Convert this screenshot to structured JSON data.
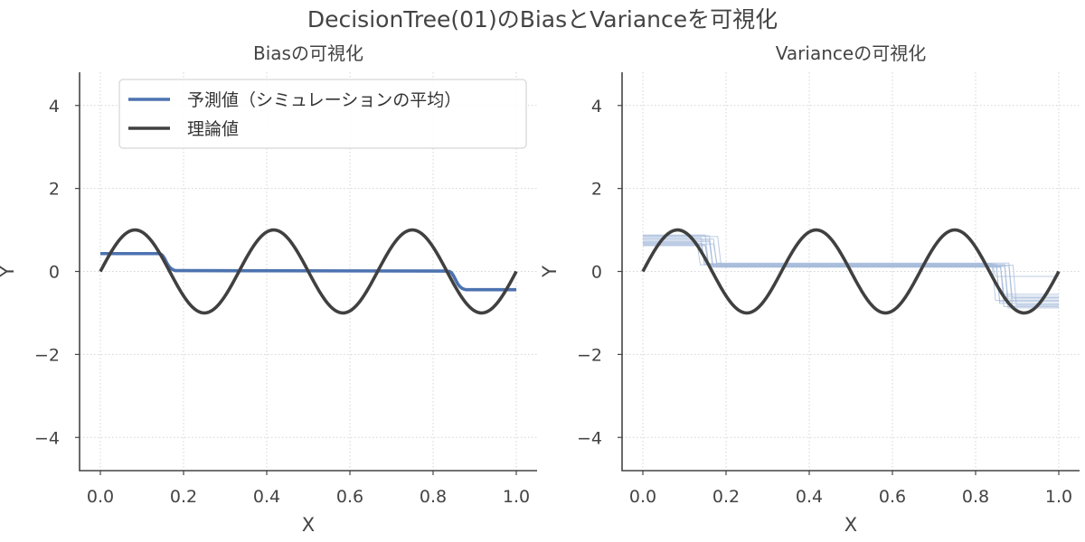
{
  "suptitle": "DecisionTree(01)のBiasとVarianceを可視化",
  "colors": {
    "predicted": "#4c72b0",
    "theory": "#404040",
    "sim": "#a4bad9"
  },
  "chart_data": [
    {
      "type": "line",
      "title": "Biasの可視化",
      "xlabel": "X",
      "ylabel": "Y",
      "xlim": [
        -0.05,
        1.05
      ],
      "ylim": [
        -4.8,
        4.8
      ],
      "xticks": [
        0.0,
        0.2,
        0.4,
        0.6,
        0.8,
        1.0
      ],
      "xtick_labels": [
        "0.0",
        "0.2",
        "0.4",
        "0.6",
        "0.8",
        "1.0"
      ],
      "yticks": [
        -4,
        -2,
        0,
        2,
        4
      ],
      "ytick_labels": [
        "−4",
        "−2",
        "0",
        "2",
        "4"
      ],
      "grid": true,
      "legend": {
        "placement": "upper-left",
        "entries": [
          "予測値（シミュレーションの平均）",
          "理論値"
        ]
      },
      "series": [
        {
          "name": "予測値（シミュレーションの平均）",
          "x": [
            0.0,
            0.14,
            0.145,
            0.15,
            0.155,
            0.16,
            0.165,
            0.17,
            0.175,
            0.18,
            0.19,
            0.83,
            0.84,
            0.845,
            0.85,
            0.855,
            0.86,
            0.865,
            0.87,
            0.875,
            0.88,
            1.0
          ],
          "y": [
            0.43,
            0.43,
            0.42,
            0.38,
            0.3,
            0.2,
            0.12,
            0.07,
            0.04,
            0.02,
            0.02,
            0.01,
            0.0,
            -0.04,
            -0.12,
            -0.22,
            -0.31,
            -0.37,
            -0.41,
            -0.43,
            -0.44,
            -0.44
          ]
        },
        {
          "name": "理論値",
          "function": "sin(3·2π·x)",
          "frequency": 3,
          "amplitude": 1,
          "x_range": [
            0.0,
            1.0
          ]
        }
      ]
    },
    {
      "type": "line",
      "title": "Varianceの可視化",
      "xlabel": "X",
      "ylabel": "Y",
      "xlim": [
        -0.05,
        1.05
      ],
      "ylim": [
        -4.8,
        4.8
      ],
      "xticks": [
        0.0,
        0.2,
        0.4,
        0.6,
        0.8,
        1.0
      ],
      "xtick_labels": [
        "0.0",
        "0.2",
        "0.4",
        "0.6",
        "0.8",
        "1.0"
      ],
      "yticks": [
        -4,
        -2,
        0,
        2,
        4
      ],
      "ytick_labels": [
        "−4",
        "−2",
        "0",
        "2",
        "4"
      ],
      "grid": true,
      "series": [
        {
          "function": "sin(3·2π·x)",
          "frequency": 3,
          "amplitude": 1,
          "x_range": [
            0.0,
            1.0
          ]
        }
      ],
      "simulations": [
        {
          "levels": [
            0.88,
            0.14,
            -0.85
          ],
          "breaks": [
            0.15,
            0.86
          ]
        },
        {
          "levels": [
            0.81,
            0.18,
            -0.77
          ],
          "breaks": [
            0.14,
            0.85
          ]
        },
        {
          "levels": [
            0.75,
            0.12,
            -0.88
          ],
          "breaks": [
            0.16,
            0.87
          ]
        },
        {
          "levels": [
            0.7,
            0.16,
            -0.7
          ],
          "breaks": [
            0.13,
            0.84
          ]
        },
        {
          "levels": [
            0.66,
            0.2,
            -0.63
          ],
          "breaks": [
            0.17,
            0.88
          ]
        },
        {
          "levels": [
            0.62,
            0.1,
            -0.55
          ],
          "breaks": [
            0.15,
            0.86
          ]
        },
        {
          "levels": [
            0.84,
            0.15,
            -0.8
          ],
          "breaks": [
            0.18,
            0.89
          ]
        },
        {
          "levels": [
            0.72,
            0.13,
            -0.72
          ],
          "breaks": [
            0.16,
            0.85
          ]
        },
        {
          "levels": [
            0.68,
            0.17,
            -0.66
          ],
          "breaks": [
            0.14,
            0.87
          ]
        },
        {
          "levels": [
            0.78,
            0.11,
            -0.6
          ],
          "breaks": [
            0.17,
            0.86
          ]
        },
        {
          "levels": [
            0.64,
            0.19,
            -0.12
          ],
          "breaks": [
            0.15,
            0.84
          ]
        },
        {
          "levels": [
            0.86,
            0.14,
            -0.82
          ],
          "breaks": [
            0.16,
            0.88
          ]
        }
      ]
    }
  ]
}
